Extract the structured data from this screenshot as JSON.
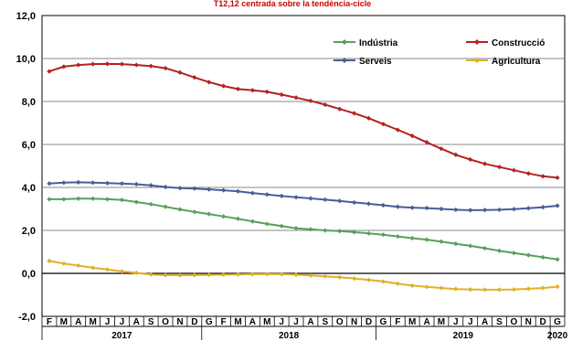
{
  "chart_data": {
    "type": "line",
    "subtitle": "T12,12 centrada sobre la tendència-cicle",
    "ylim": [
      -2.0,
      12.0
    ],
    "yticks": [
      "12,0",
      "10,0",
      "8,0",
      "6,0",
      "4,0",
      "2,0",
      "0,0",
      "-2,0"
    ],
    "ytick_values": [
      12,
      10,
      8,
      6,
      4,
      2,
      0,
      -2
    ],
    "grid": true,
    "legend_position": "top-right",
    "months": [
      "F",
      "M",
      "A",
      "M",
      "J",
      "J",
      "A",
      "S",
      "O",
      "N",
      "D",
      "G",
      "F",
      "M",
      "A",
      "M",
      "J",
      "J",
      "A",
      "S",
      "O",
      "N",
      "D",
      "G",
      "F",
      "M",
      "A",
      "M",
      "J",
      "J",
      "A",
      "S",
      "O",
      "N",
      "D",
      "G"
    ],
    "years": [
      {
        "label": "2017",
        "start": 0,
        "end": 10
      },
      {
        "label": "2018",
        "start": 11,
        "end": 22
      },
      {
        "label": "2019",
        "start": 23,
        "end": 34
      },
      {
        "label": "2020",
        "start": 35,
        "end": 35
      }
    ],
    "series": [
      {
        "name": "Indústria",
        "color": "#5b9e5b",
        "marker": "diamond",
        "values": [
          3.45,
          3.45,
          3.48,
          3.48,
          3.45,
          3.42,
          3.32,
          3.22,
          3.1,
          2.98,
          2.86,
          2.76,
          2.65,
          2.54,
          2.42,
          2.3,
          2.2,
          2.1,
          2.05,
          2.0,
          1.97,
          1.92,
          1.86,
          1.8,
          1.72,
          1.64,
          1.57,
          1.48,
          1.38,
          1.28,
          1.17,
          1.05,
          0.95,
          0.85,
          0.75,
          0.65
        ]
      },
      {
        "name": "Construcció",
        "color": "#b22222",
        "marker": "diamond",
        "values": [
          9.4,
          9.62,
          9.7,
          9.74,
          9.75,
          9.74,
          9.7,
          9.65,
          9.55,
          9.35,
          9.12,
          8.9,
          8.72,
          8.58,
          8.52,
          8.45,
          8.32,
          8.18,
          8.03,
          7.85,
          7.65,
          7.45,
          7.22,
          6.95,
          6.68,
          6.4,
          6.1,
          5.8,
          5.52,
          5.3,
          5.1,
          4.95,
          4.8,
          4.65,
          4.52,
          4.45
        ]
      },
      {
        "name": "Serveis",
        "color": "#4a5d96",
        "marker": "diamond",
        "values": [
          4.18,
          4.22,
          4.24,
          4.22,
          4.2,
          4.18,
          4.15,
          4.1,
          4.02,
          3.97,
          3.95,
          3.91,
          3.87,
          3.82,
          3.74,
          3.67,
          3.6,
          3.54,
          3.49,
          3.43,
          3.37,
          3.3,
          3.24,
          3.17,
          3.1,
          3.06,
          3.04,
          3.0,
          2.96,
          2.94,
          2.95,
          2.96,
          2.99,
          3.03,
          3.08,
          3.15
        ]
      },
      {
        "name": "Agricultura",
        "color": "#e0b02a",
        "marker": "diamond",
        "values": [
          0.58,
          0.46,
          0.36,
          0.26,
          0.18,
          0.09,
          0.02,
          -0.05,
          -0.08,
          -0.09,
          -0.08,
          -0.07,
          -0.06,
          -0.05,
          -0.04,
          -0.03,
          -0.04,
          -0.06,
          -0.1,
          -0.14,
          -0.18,
          -0.24,
          -0.3,
          -0.38,
          -0.48,
          -0.57,
          -0.63,
          -0.68,
          -0.73,
          -0.75,
          -0.76,
          -0.76,
          -0.75,
          -0.72,
          -0.68,
          -0.62
        ]
      }
    ]
  }
}
